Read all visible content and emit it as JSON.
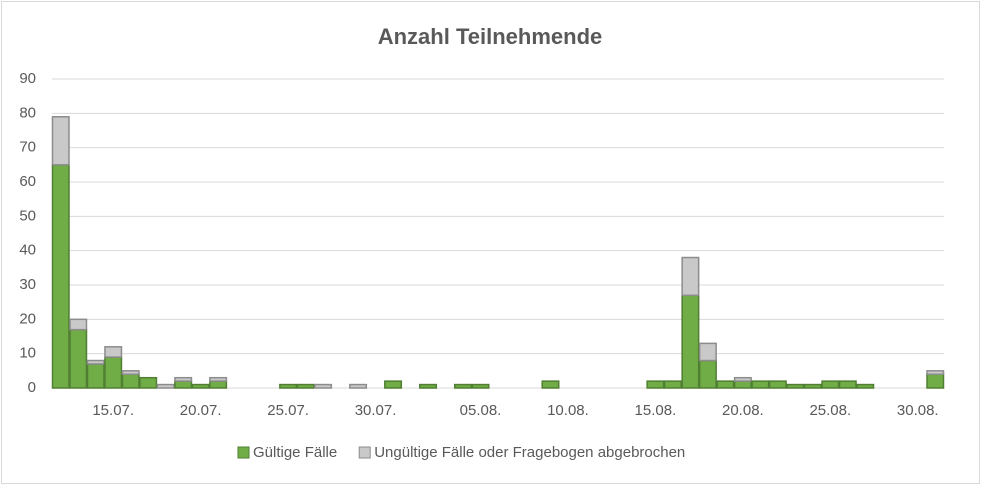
{
  "chart_data": {
    "type": "stacked_bar",
    "title": "Anzahl Teilnehmende",
    "categories": [
      null,
      null,
      null,
      "15.07.",
      null,
      null,
      null,
      null,
      "20.07.",
      null,
      null,
      null,
      null,
      "25.07.",
      null,
      null,
      null,
      null,
      "30.07.",
      null,
      null,
      null,
      null,
      null,
      "05.08.",
      null,
      null,
      null,
      null,
      "10.08.",
      null,
      null,
      null,
      null,
      "15.08.",
      null,
      null,
      null,
      null,
      "20.08.",
      null,
      null,
      null,
      null,
      "25.08.",
      null,
      null,
      null,
      null,
      "30.08.",
      null
    ],
    "series": [
      {
        "name": "Gültige Fälle",
        "color": "#70ad47",
        "stroke": "#507e32",
        "values": [
          65,
          17,
          7,
          9,
          4,
          3,
          0,
          2,
          1,
          2,
          0,
          0,
          0,
          1,
          1,
          0,
          0,
          0,
          0,
          2,
          0,
          1,
          0,
          1,
          1,
          0,
          0,
          0,
          2,
          0,
          0,
          0,
          0,
          0,
          2,
          2,
          27,
          8,
          2,
          2,
          2,
          2,
          1,
          1,
          2,
          2,
          1,
          0,
          0,
          0,
          4
        ]
      },
      {
        "name": "Ungültige Fälle oder Fragebogen abgebrochen",
        "color": "#c9c9c9",
        "stroke": "#8c8c8c",
        "values": [
          14,
          3,
          1,
          3,
          1,
          0,
          1,
          1,
          0,
          1,
          0,
          0,
          0,
          0,
          0,
          1,
          0,
          1,
          0,
          0,
          0,
          0,
          0,
          0,
          0,
          0,
          0,
          0,
          0,
          0,
          0,
          0,
          0,
          0,
          0,
          0,
          11,
          5,
          0,
          1,
          0,
          0,
          0,
          0,
          0,
          0,
          0,
          0,
          0,
          0,
          1
        ]
      }
    ],
    "ylim": [
      0,
      90
    ],
    "yticks": [
      0,
      10,
      20,
      30,
      40,
      50,
      60,
      70,
      80,
      90
    ],
    "grid": true
  }
}
